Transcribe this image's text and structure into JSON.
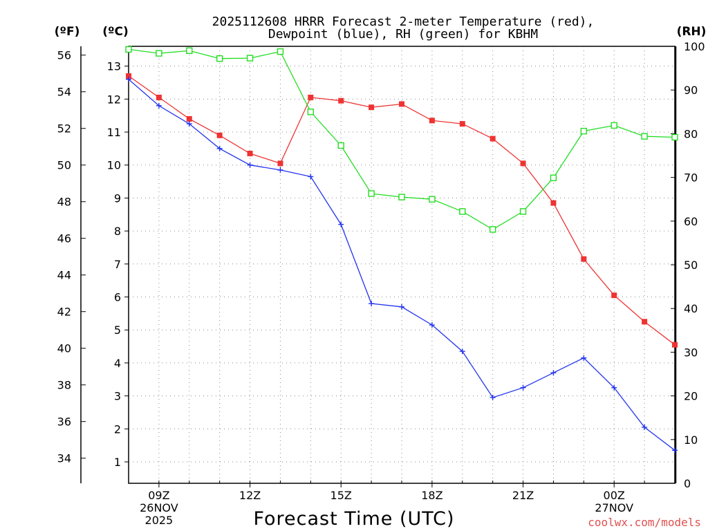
{
  "chart_data": {
    "type": "line",
    "title_line1": "2025112608 HRRR Forecast 2-meter Temperature (red),",
    "title_line2": "Dewpoint (blue), RH (green) for KBHM",
    "xlabel": "Forecast Time (UTC)",
    "unit_labels": {
      "f": "(ºF)",
      "c": "(ºC)",
      "rh": "(RH)"
    },
    "x": [
      8,
      9,
      10,
      11,
      12,
      13,
      14,
      15,
      16,
      17,
      18,
      19,
      20,
      21,
      22,
      23,
      24,
      25,
      26
    ],
    "x_ticks": [
      {
        "x": 9,
        "lines": [
          "09Z",
          "26NOV",
          "2025"
        ]
      },
      {
        "x": 12,
        "lines": [
          "12Z"
        ]
      },
      {
        "x": 15,
        "lines": [
          "15Z"
        ]
      },
      {
        "x": 18,
        "lines": [
          "18Z"
        ]
      },
      {
        "x": 21,
        "lines": [
          "21Z"
        ]
      },
      {
        "x": 24,
        "lines": [
          "00Z",
          "27NOV"
        ]
      }
    ],
    "xlim": [
      8,
      26
    ],
    "celsius_axis": {
      "ylim": [
        0.35,
        13.6
      ],
      "ticks": [
        1,
        2,
        3,
        4,
        5,
        6,
        7,
        8,
        9,
        10,
        11,
        12,
        13
      ]
    },
    "fahrenheit_axis": {
      "ticks": [
        34,
        36,
        38,
        40,
        42,
        44,
        46,
        48,
        50,
        52,
        54,
        56
      ]
    },
    "rh_axis": {
      "ylim": [
        0,
        100
      ],
      "ticks": [
        0,
        10,
        20,
        30,
        40,
        50,
        60,
        70,
        80,
        90,
        100
      ]
    },
    "series": [
      {
        "name": "Temperature",
        "axis": "celsius",
        "color": "#ee3333",
        "marker": "filled-square",
        "values": [
          12.7,
          12.05,
          11.4,
          10.9,
          10.35,
          10.05,
          12.05,
          11.95,
          11.75,
          11.85,
          11.35,
          11.25,
          10.8,
          10.05,
          8.85,
          7.15,
          6.05,
          5.25,
          4.55
        ]
      },
      {
        "name": "Dewpoint",
        "axis": "celsius",
        "color": "#2233ee",
        "marker": "plus",
        "values": [
          12.6,
          11.8,
          11.25,
          10.5,
          10.0,
          9.85,
          9.65,
          8.2,
          5.8,
          5.7,
          5.15,
          4.35,
          2.95,
          3.25,
          3.7,
          4.15,
          3.25,
          2.05,
          1.35
        ]
      },
      {
        "name": "RH",
        "axis": "rh",
        "color": "#22dd22",
        "marker": "open-square",
        "values": [
          99.3,
          98.4,
          99.0,
          97.2,
          97.3,
          98.8,
          85.0,
          77.3,
          66.3,
          65.5,
          65.0,
          62.2,
          58.1,
          62.2,
          69.9,
          80.6,
          81.9,
          79.4,
          79.2
        ]
      }
    ]
  },
  "credit": "coolwx.com/models"
}
